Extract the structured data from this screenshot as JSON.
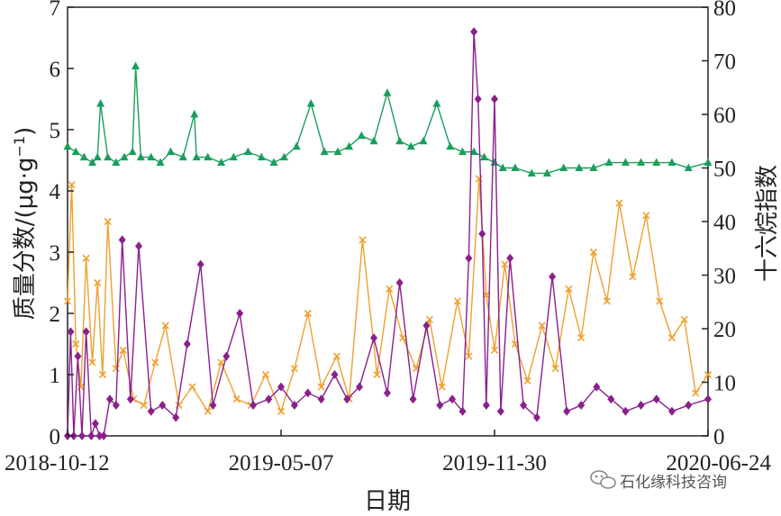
{
  "chart_data": {
    "type": "line",
    "xlabel": "日期",
    "ylabel_left": "质量分数/(μg·g",
    "ylabel_left_sup": "−1",
    "ylabel_left_close": ")",
    "ylabel_right": "十六烷指数",
    "x_range": [
      "2018-10-12",
      "2020-06-24"
    ],
    "x_ticks": [
      "2018-10-12",
      "2019-05-07",
      "2019-11-30",
      "2020-06-24"
    ],
    "ylim_left": [
      0,
      7
    ],
    "yticks_left": [
      0,
      1,
      2,
      3,
      4,
      5,
      6,
      7
    ],
    "ylim_right": [
      0,
      80
    ],
    "yticks_right": [
      0,
      10,
      20,
      30,
      40,
      50,
      60,
      70,
      80
    ],
    "grid": false,
    "series": [
      {
        "axis": "right",
        "marker": "triangle",
        "color": "#1a9e5c",
        "x": [
          "2018-10-12",
          "2018-10-20",
          "2018-10-28",
          "2018-11-05",
          "2018-11-10",
          "2018-11-13",
          "2018-11-20",
          "2018-11-28",
          "2018-12-06",
          "2018-12-14",
          "2018-12-17",
          "2018-12-22",
          "2019-01-01",
          "2019-01-10",
          "2019-01-20",
          "2019-02-01",
          "2019-02-12",
          "2019-02-14",
          "2019-02-25",
          "2019-03-10",
          "2019-03-22",
          "2019-04-05",
          "2019-04-18",
          "2019-04-30",
          "2019-05-10",
          "2019-05-22",
          "2019-06-05",
          "2019-06-18",
          "2019-07-01",
          "2019-07-12",
          "2019-07-24",
          "2019-08-05",
          "2019-08-18",
          "2019-08-30",
          "2019-09-10",
          "2019-09-22",
          "2019-10-05",
          "2019-10-18",
          "2019-10-30",
          "2019-11-10",
          "2019-11-20",
          "2019-11-30",
          "2019-12-08",
          "2019-12-20",
          "2020-01-05",
          "2020-01-20",
          "2020-02-05",
          "2020-02-20",
          "2020-03-05",
          "2020-03-20",
          "2020-04-05",
          "2020-04-20",
          "2020-05-05",
          "2020-05-20",
          "2020-06-05",
          "2020-06-24"
        ],
        "values": [
          54,
          53,
          52,
          51,
          52,
          62,
          52,
          51,
          52,
          53,
          69,
          52,
          52,
          51,
          53,
          52,
          60,
          52,
          52,
          51,
          52,
          53,
          52,
          51,
          52,
          54,
          62,
          53,
          53,
          54,
          56,
          55,
          64,
          55,
          54,
          55,
          62,
          54,
          53,
          53,
          52,
          51,
          50,
          50,
          49,
          49,
          50,
          50,
          50,
          51,
          51,
          51,
          51,
          51,
          50,
          51
        ]
      },
      {
        "axis": "left",
        "marker": "x",
        "color": "#f0a030",
        "x": [
          "2018-10-12",
          "2018-10-16",
          "2018-10-20",
          "2018-10-25",
          "2018-10-30",
          "2018-11-05",
          "2018-11-10",
          "2018-11-15",
          "2018-11-20",
          "2018-11-28",
          "2018-12-05",
          "2018-12-15",
          "2018-12-25",
          "2019-01-05",
          "2019-01-15",
          "2019-01-28",
          "2019-02-10",
          "2019-02-25",
          "2019-03-10",
          "2019-03-25",
          "2019-04-08",
          "2019-04-22",
          "2019-05-07",
          "2019-05-20",
          "2019-06-02",
          "2019-06-15",
          "2019-06-30",
          "2019-07-12",
          "2019-07-25",
          "2019-08-08",
          "2019-08-20",
          "2019-09-02",
          "2019-09-15",
          "2019-09-28",
          "2019-10-10",
          "2019-10-25",
          "2019-11-05",
          "2019-11-15",
          "2019-11-22",
          "2019-11-30",
          "2019-12-10",
          "2019-12-20",
          "2020-01-01",
          "2020-01-15",
          "2020-01-28",
          "2020-02-10",
          "2020-02-22",
          "2020-03-05",
          "2020-03-18",
          "2020-03-30",
          "2020-04-12",
          "2020-04-25",
          "2020-05-08",
          "2020-05-20",
          "2020-06-01",
          "2020-06-12",
          "2020-06-24"
        ],
        "values": [
          2.2,
          4.1,
          1.5,
          0.8,
          2.9,
          1.2,
          2.5,
          1.0,
          3.5,
          1.1,
          1.4,
          0.6,
          0.5,
          1.2,
          1.8,
          0.5,
          0.8,
          0.4,
          1.2,
          0.6,
          0.5,
          1.0,
          0.4,
          1.1,
          2.0,
          0.8,
          1.3,
          0.6,
          3.2,
          1.0,
          2.4,
          1.6,
          1.1,
          1.9,
          0.8,
          2.2,
          1.3,
          4.2,
          2.3,
          1.4,
          2.8,
          1.5,
          0.9,
          1.8,
          1.1,
          2.4,
          1.6,
          3.0,
          2.2,
          3.8,
          2.6,
          3.6,
          2.2,
          1.6,
          1.9,
          0.7,
          1.0
        ]
      },
      {
        "axis": "left",
        "marker": "diamond",
        "color": "#8a1f8e",
        "x": [
          "2018-10-12",
          "2018-10-15",
          "2018-10-18",
          "2018-10-22",
          "2018-10-26",
          "2018-10-30",
          "2018-11-04",
          "2018-11-08",
          "2018-11-12",
          "2018-11-16",
          "2018-11-22",
          "2018-11-28",
          "2018-12-04",
          "2018-12-12",
          "2018-12-20",
          "2019-01-01",
          "2019-01-12",
          "2019-01-25",
          "2019-02-05",
          "2019-02-18",
          "2019-03-02",
          "2019-03-15",
          "2019-03-28",
          "2019-04-10",
          "2019-04-25",
          "2019-05-07",
          "2019-05-20",
          "2019-06-02",
          "2019-06-15",
          "2019-06-28",
          "2019-07-10",
          "2019-07-22",
          "2019-08-05",
          "2019-08-18",
          "2019-08-30",
          "2019-09-12",
          "2019-09-25",
          "2019-10-08",
          "2019-10-20",
          "2019-10-30",
          "2019-11-05",
          "2019-11-10",
          "2019-11-14",
          "2019-11-18",
          "2019-11-22",
          "2019-11-30",
          "2019-12-06",
          "2019-12-15",
          "2019-12-28",
          "2020-01-10",
          "2020-01-25",
          "2020-02-08",
          "2020-02-22",
          "2020-03-08",
          "2020-03-22",
          "2020-04-05",
          "2020-04-20",
          "2020-05-05",
          "2020-05-20",
          "2020-06-05",
          "2020-06-24"
        ],
        "values": [
          0,
          1.7,
          0,
          1.3,
          0,
          1.7,
          0,
          0.2,
          0,
          0,
          0.6,
          0.5,
          3.2,
          0.6,
          3.1,
          0.4,
          0.5,
          0.3,
          1.5,
          2.8,
          0.5,
          1.3,
          2.0,
          0.5,
          0.6,
          0.8,
          0.5,
          0.7,
          0.6,
          1.0,
          0.6,
          0.8,
          1.6,
          0.7,
          2.5,
          0.6,
          1.8,
          0.5,
          0.6,
          0.4,
          2.9,
          6.6,
          5.5,
          3.3,
          0.5,
          5.5,
          0.4,
          2.9,
          0.5,
          0.3,
          2.6,
          0.4,
          0.5,
          0.8,
          0.6,
          0.4,
          0.5,
          0.6,
          0.4,
          0.5,
          0.6
        ]
      }
    ]
  },
  "watermark": {
    "icon": "wechat-icon",
    "text": "石化缘科技咨询"
  }
}
